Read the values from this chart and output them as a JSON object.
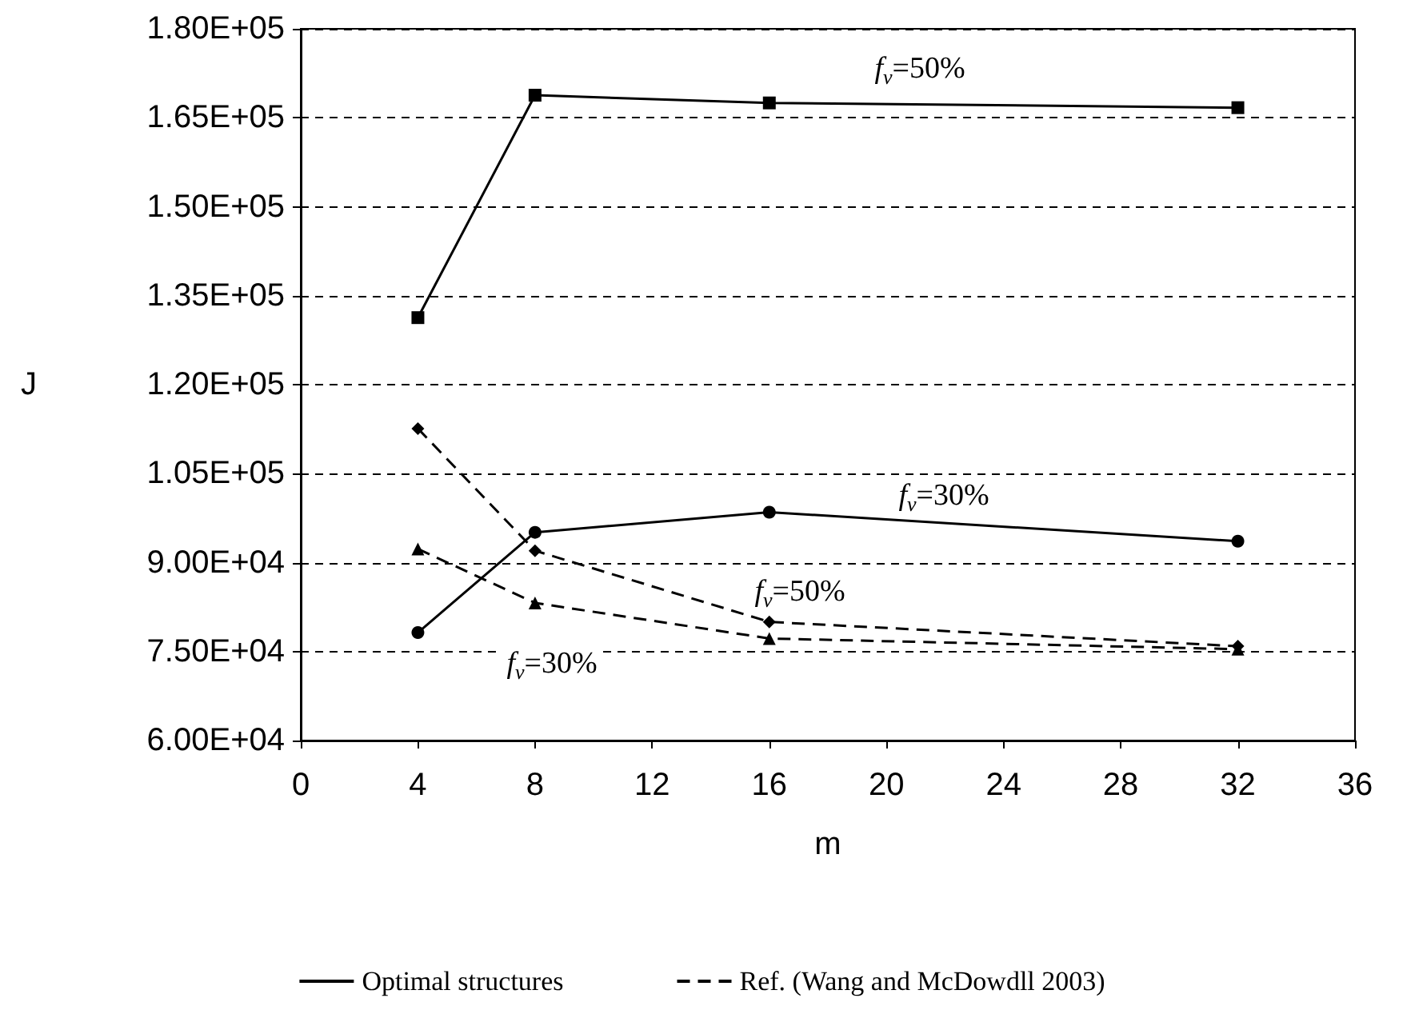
{
  "chart_data": {
    "type": "line",
    "xlabel": "m",
    "ylabel": "J",
    "x": [
      4,
      8,
      16,
      32
    ],
    "series": [
      {
        "name": "Optimal structures",
        "color": "#000000",
        "marker": "square",
        "line_style": "solid",
        "values": [
          131300,
          168800,
          167500,
          166700
        ]
      },
      {
        "color": "#000000",
        "marker": "circle",
        "line_style": "solid",
        "values": [
          78200,
          95100,
          98500,
          93600
        ]
      },
      {
        "name": "Ref. (Wang and McDowdll 2003)",
        "color": "#000000",
        "marker": "diamond",
        "line_style": "dashed",
        "values": [
          112600,
          92000,
          80000,
          75900
        ]
      },
      {
        "color": "#000000",
        "marker": "triangle",
        "line_style": "dashed",
        "values": [
          92300,
          83200,
          77200,
          75400
        ]
      }
    ],
    "xlim": [
      0,
      36
    ],
    "xticks": [
      0,
      4,
      8,
      12,
      16,
      20,
      24,
      28,
      32,
      36
    ],
    "ylim": [
      60000,
      180000
    ],
    "yticks": [
      {
        "value": 60000,
        "label": "6.00E+04"
      },
      {
        "value": 75000,
        "label": "7.50E+04"
      },
      {
        "value": 90000,
        "label": "9.00E+04"
      },
      {
        "value": 105000,
        "label": "1.05E+05"
      },
      {
        "value": 120000,
        "label": "1.20E+05"
      },
      {
        "value": 135000,
        "label": "1.35E+05"
      },
      {
        "value": 150000,
        "label": "1.50E+05"
      },
      {
        "value": 165000,
        "label": "1.65E+05"
      },
      {
        "value": 180000,
        "label": "1.80E+05"
      }
    ],
    "grid": "y",
    "legend": "bottom",
    "annotations": [
      "f$_{v}$=50%",
      "f$_{v}$=30%",
      "f$_{v}$=50%",
      "f$_{v}$=30%"
    ]
  }
}
